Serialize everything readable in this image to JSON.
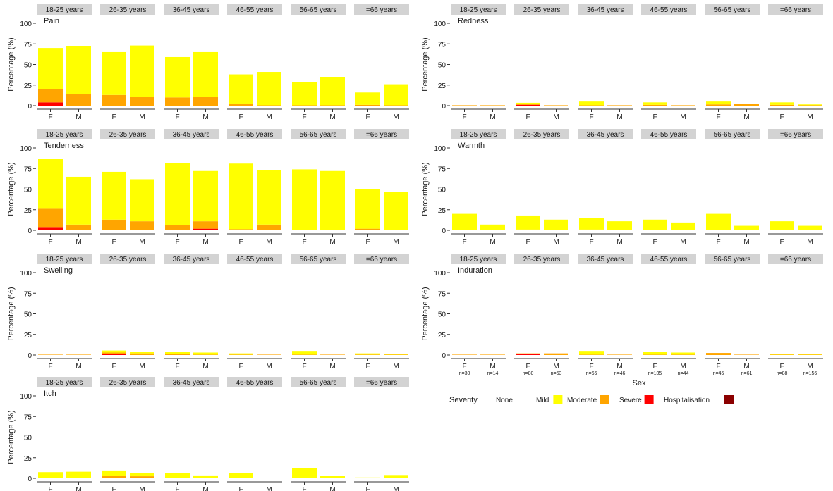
{
  "colors": {
    "None": "#ffffff",
    "Mild": "#ffff00",
    "Moderate": "#ffa500",
    "Severe": "#ff0000",
    "Hospitalisation": "#8b0000",
    "strip": "#d3d3d3",
    "axis": "#333333"
  },
  "legend": {
    "title": "Severity",
    "items": [
      "None",
      "Mild",
      "Moderate",
      "Severe",
      "Hospitalisation"
    ]
  },
  "x_axis_title": "Sex",
  "chart_data": {
    "type": "bar",
    "stacked": true,
    "ylabel": "Percentage (%)",
    "ylim": [
      0,
      100
    ],
    "yticks": [
      0,
      25,
      50,
      75,
      100
    ],
    "grid": false,
    "legend_position": "bottom-right",
    "facets": [
      "18-25 years",
      "26-35 years",
      "36-45 years",
      "46-55 years",
      "56-65 years",
      "=66 years"
    ],
    "categories": [
      "F",
      "M"
    ],
    "stack_order": [
      "Hospitalisation",
      "Severe",
      "Moderate",
      "Mild"
    ],
    "sample_sizes": [
      [
        "n=30",
        "n=14"
      ],
      [
        "n=80",
        "n=53"
      ],
      [
        "n=66",
        "n=46"
      ],
      [
        "n=105",
        "n=44"
      ],
      [
        "n=45",
        "n=61"
      ],
      [
        "n=88",
        "n=156"
      ]
    ],
    "panels": [
      {
        "symptom": "Pain",
        "values": [
          [
            {
              "Severe": 4,
              "Moderate": 16,
              "Mild": 50
            },
            {
              "Moderate": 14,
              "Mild": 58
            }
          ],
          [
            {
              "Moderate": 13,
              "Mild": 52
            },
            {
              "Moderate": 11,
              "Mild": 62
            }
          ],
          [
            {
              "Moderate": 10,
              "Mild": 49
            },
            {
              "Moderate": 11,
              "Mild": 54
            }
          ],
          [
            {
              "Moderate": 2,
              "Mild": 36
            },
            {
              "Moderate": 0.5,
              "Mild": 40.5
            }
          ],
          [
            {
              "Moderate": 0.5,
              "Mild": 28.5
            },
            {
              "Moderate": 0.5,
              "Mild": 34.5
            }
          ],
          [
            {
              "Moderate": 1,
              "Mild": 15
            },
            {
              "Moderate": 0.5,
              "Mild": 25.5
            }
          ]
        ]
      },
      {
        "symptom": "Redness",
        "values": [
          [
            {
              "Moderate": 0.5
            },
            {
              "Moderate": 0.5
            }
          ],
          [
            {
              "Severe": 1,
              "Moderate": 1,
              "Mild": 1.5
            },
            {
              "Moderate": 0.5
            }
          ],
          [
            {
              "Moderate": 0.5,
              "Mild": 4.5
            },
            {
              "Moderate": 0.5
            }
          ],
          [
            {
              "Moderate": 1,
              "Mild": 3
            },
            {
              "Moderate": 0.5
            }
          ],
          [
            {
              "Moderate": 1.5,
              "Mild": 3.5
            },
            {
              "Moderate": 2
            }
          ],
          [
            {
              "Moderate": 1,
              "Mild": 3
            },
            {
              "Moderate": 0.5,
              "Mild": 1
            }
          ]
        ]
      },
      {
        "symptom": "Tenderness",
        "values": [
          [
            {
              "Severe": 4,
              "Moderate": 23,
              "Mild": 60
            },
            {
              "Moderate": 7,
              "Mild": 58
            }
          ],
          [
            {
              "Moderate": 13,
              "Mild": 58
            },
            {
              "Moderate": 11,
              "Mild": 51
            }
          ],
          [
            {
              "Moderate": 6,
              "Mild": 76
            },
            {
              "Severe": 2,
              "Moderate": 9,
              "Mild": 61
            }
          ],
          [
            {
              "Moderate": 1.5,
              "Mild": 79.5
            },
            {
              "Moderate": 7,
              "Mild": 66
            }
          ],
          [
            {
              "Moderate": 0.5,
              "Mild": 73.5
            },
            {
              "Moderate": 0.5,
              "Mild": 71.5
            }
          ],
          [
            {
              "Moderate": 2,
              "Mild": 48
            },
            {
              "Moderate": 0.5,
              "Mild": 46.5
            }
          ]
        ]
      },
      {
        "symptom": "Warmth",
        "values": [
          [
            {
              "Moderate": 0.5,
              "Mild": 19.5
            },
            {
              "Moderate": 0.5,
              "Mild": 6.5
            }
          ],
          [
            {
              "Moderate": 1,
              "Mild": 17
            },
            {
              "Moderate": 0.5,
              "Mild": 12.5
            }
          ],
          [
            {
              "Moderate": 1,
              "Mild": 14
            },
            {
              "Moderate": 0.5,
              "Mild": 10.5
            }
          ],
          [
            {
              "Moderate": 0.5,
              "Mild": 12.5
            },
            {
              "Moderate": 0.5,
              "Mild": 9
            }
          ],
          [
            {
              "Moderate": 0.5,
              "Mild": 19.5
            },
            {
              "Moderate": 0.5,
              "Mild": 5
            }
          ],
          [
            {
              "Moderate": 0.5,
              "Mild": 10.5
            },
            {
              "Moderate": 0.5,
              "Mild": 5
            }
          ]
        ]
      },
      {
        "symptom": "Swelling",
        "values": [
          [
            {
              "Moderate": 0.5
            },
            {
              "Moderate": 0.5
            }
          ],
          [
            {
              "Severe": 1,
              "Moderate": 2,
              "Mild": 2.5
            },
            {
              "Moderate": 2,
              "Mild": 2
            }
          ],
          [
            {
              "Moderate": 1,
              "Mild": 2.5
            },
            {
              "Moderate": 0.5,
              "Mild": 2.5
            }
          ],
          [
            {
              "Moderate": 0.5,
              "Mild": 1.5
            },
            {
              "Moderate": 0.5
            }
          ],
          [
            {
              "Moderate": 0.5,
              "Mild": 4.5
            },
            {
              "Moderate": 0.5
            }
          ],
          [
            {
              "Moderate": 0.5,
              "Mild": 1.5
            },
            {
              "Moderate": 0.5,
              "Mild": 0.5
            }
          ]
        ]
      },
      {
        "symptom": "Induration",
        "values": [
          [
            {
              "Moderate": 0.5
            },
            {
              "Moderate": 0.5
            }
          ],
          [
            {
              "Severe": 1.5,
              "Moderate": 0.5
            },
            {
              "Moderate": 2
            }
          ],
          [
            {
              "Moderate": 0.5,
              "Mild": 4.5
            },
            {
              "Moderate": 0.5
            }
          ],
          [
            {
              "Moderate": 0.5,
              "Mild": 3.5
            },
            {
              "Moderate": 0.5,
              "Mild": 2.5
            }
          ],
          [
            {
              "Moderate": 2.5
            },
            {
              "Moderate": 0.5
            }
          ],
          [
            {
              "Moderate": 0.5,
              "Mild": 1
            },
            {
              "Moderate": 0.5,
              "Mild": 1
            }
          ]
        ]
      },
      {
        "symptom": "Itch",
        "values": [
          [
            {
              "Moderate": 0.5,
              "Mild": 7
            },
            {
              "Moderate": 0.5,
              "Mild": 7.5
            }
          ],
          [
            {
              "Moderate": 3,
              "Mild": 6.5
            },
            {
              "Moderate": 2.5,
              "Mild": 4
            }
          ],
          [
            {
              "Moderate": 0.5,
              "Mild": 6
            },
            {
              "Moderate": 0.5,
              "Mild": 3
            }
          ],
          [
            {
              "Moderate": 0.5,
              "Mild": 6
            },
            {
              "Moderate": 0.5
            }
          ],
          [
            {
              "Moderate": 0.5,
              "Mild": 11.5
            },
            {
              "Moderate": 0.5,
              "Mild": 2.5
            }
          ],
          [
            {
              "Moderate": 0.5,
              "Mild": 0.5
            },
            {
              "Moderate": 0.5,
              "Mild": 3.5
            }
          ]
        ]
      }
    ]
  }
}
